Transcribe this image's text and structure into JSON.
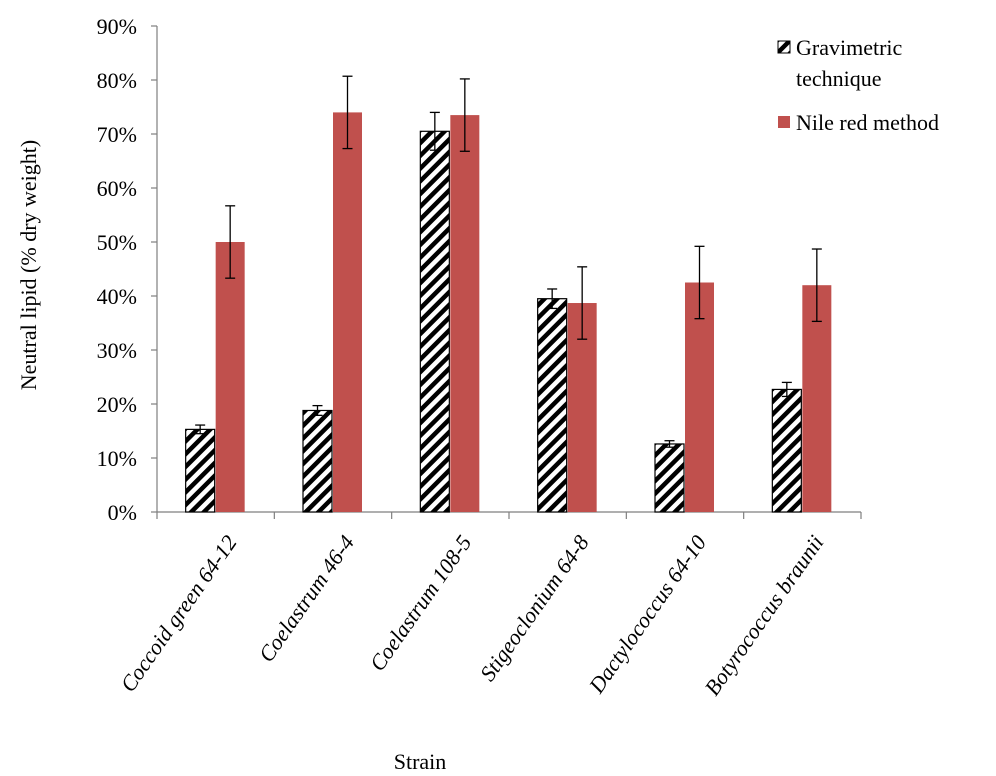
{
  "chart_data": {
    "type": "bar",
    "title": "",
    "xlabel": "Strain",
    "ylabel": "Neutral lipid (% dry weight)",
    "ylim": [
      0,
      90
    ],
    "yticks": [
      0,
      10,
      20,
      30,
      40,
      50,
      60,
      70,
      80,
      90
    ],
    "ytick_labels": [
      "0%",
      "10%",
      "20%",
      "30%",
      "40%",
      "50%",
      "60%",
      "70%",
      "80%",
      "90%"
    ],
    "categories": [
      "Coccoid green 64-12",
      "Coelastrum 46-4",
      "Coelastrum 108-5",
      "Stigeoclonium 64-8",
      "Dactylococcus 64-10",
      "Botyrococcus braunii"
    ],
    "series": [
      {
        "name": "Gravimetric technique",
        "fill": "hatched",
        "color": "#000000",
        "values": [
          15.3,
          18.8,
          70.5,
          39.5,
          12.6,
          22.7
        ],
        "errors": [
          0.8,
          0.9,
          3.5,
          1.8,
          0.6,
          1.3
        ]
      },
      {
        "name": "Nile red method",
        "fill": "solid",
        "color": "#C0504D",
        "values": [
          50.0,
          74.0,
          73.5,
          38.7,
          42.5,
          42.0
        ],
        "errors": [
          6.7,
          6.7,
          6.7,
          6.7,
          6.7,
          6.7
        ]
      }
    ],
    "legend": {
      "position": "top-right",
      "entries": [
        [
          "Gravimetric",
          "technique"
        ],
        [
          "Nile red method"
        ]
      ]
    },
    "grid": false
  }
}
